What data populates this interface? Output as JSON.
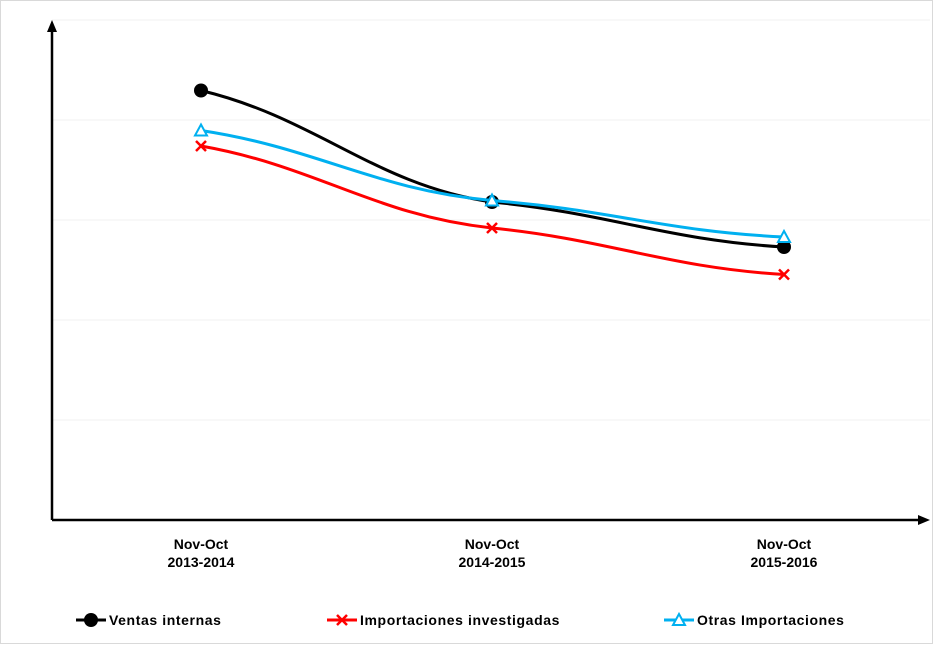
{
  "chart_data": {
    "type": "line",
    "title": "",
    "xlabel": "",
    "ylabel": "",
    "categories": [
      [
        "Nov-Oct",
        "2013-2014"
      ],
      [
        "Nov-Oct",
        "2014-2015"
      ],
      [
        "Nov-Oct",
        "2015-2016"
      ]
    ],
    "ylim": [
      0,
      100
    ],
    "y_ticks_labeled": false,
    "grid": "horizontal-faint",
    "legend_position": "bottom",
    "series": [
      {
        "name": "Ventas internas",
        "marker": "circle",
        "color": "#000000",
        "values": [
          85.9,
          63.6,
          54.6
        ]
      },
      {
        "name": "Importaciones investigadas",
        "marker": "x",
        "color": "#ff0000",
        "values": [
          74.8,
          58.4,
          49.1
        ]
      },
      {
        "name": "Otras Importaciones",
        "marker": "triangle",
        "color": "#00b0f0",
        "values": [
          77.9,
          63.9,
          56.6
        ]
      }
    ]
  }
}
